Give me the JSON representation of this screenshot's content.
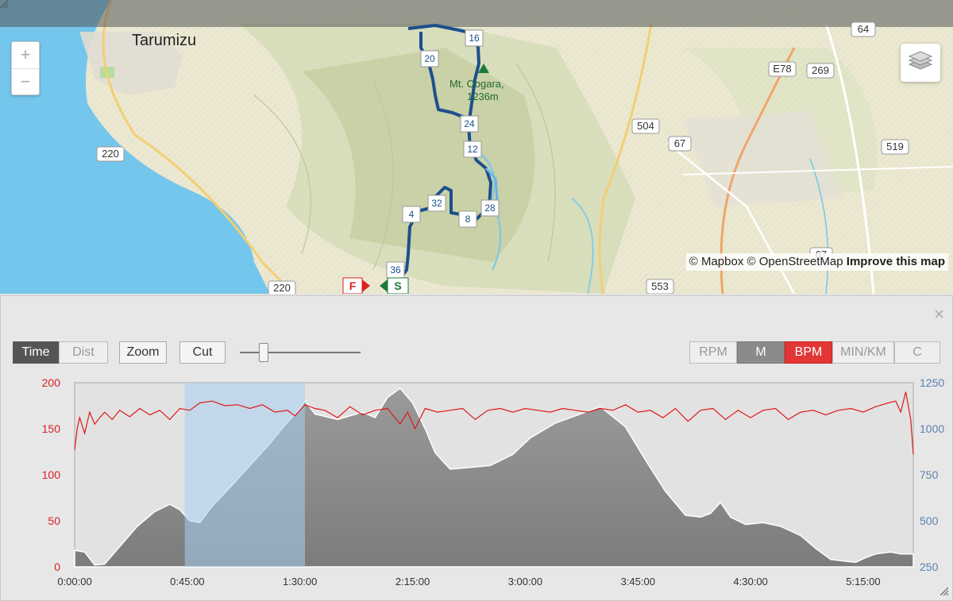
{
  "map": {
    "place_label": "Tarumizu",
    "peak_label_line1": "Mt. Oogara,",
    "peak_label_line2": "1236m",
    "roads": [
      "220",
      "220",
      "64",
      "E78",
      "269",
      "504",
      "67",
      "519",
      "553",
      "67"
    ],
    "checkpoints": [
      "16",
      "20",
      "24",
      "12",
      "32",
      "4",
      "8",
      "28",
      "36"
    ],
    "finish_marker": "F",
    "start_marker": "S",
    "zoom_in": "+",
    "zoom_out": "−",
    "attribution_mapbox": "© Mapbox",
    "attribution_osm": "© OpenStreetMap",
    "attribution_improve": "Improve this map",
    "colors": {
      "sea": "#74c6ec",
      "land": "#ece8d2",
      "route": "#1c4f8c"
    }
  },
  "toolbar": {
    "time": "Time",
    "dist": "Dist",
    "zoom": "Zoom",
    "cut": "Cut",
    "slider_value": 0.2,
    "units": [
      "RPM",
      "M",
      "BPM",
      "MIN/KM",
      "C"
    ],
    "active_axis_unit": "M",
    "active_series_unit": "BPM"
  },
  "panel": {
    "close": "×"
  },
  "chart_data": {
    "type": "area",
    "x_ticks": [
      "0:00:00",
      "0:45:00",
      "1:30:00",
      "2:15:00",
      "3:00:00",
      "3:45:00",
      "4:30:00",
      "5:15:00"
    ],
    "x_range_min": [
      0,
      335
    ],
    "selection_min": [
      44,
      92
    ],
    "series": [
      {
        "name": "M",
        "axis": "right",
        "ylim": [
          250,
          1250
        ],
        "y_ticks": [
          "250",
          "500",
          "750",
          "1000",
          "1250"
        ],
        "x": [
          0,
          4,
          8,
          12,
          18,
          25,
          32,
          38,
          42,
          46,
          50,
          55,
          62,
          70,
          78,
          84,
          90,
          92,
          96,
          105,
          115,
          120,
          125,
          130,
          135,
          140,
          144,
          150,
          158,
          166,
          175,
          182,
          192,
          200,
          210,
          220,
          228,
          236,
          244,
          250,
          254,
          258,
          262,
          268,
          275,
          282,
          290,
          296,
          302,
          308,
          312,
          316,
          320,
          326,
          330,
          335
        ],
        "values": [
          340,
          330,
          260,
          265,
          360,
          470,
          550,
          590,
          560,
          500,
          490,
          580,
          680,
          800,
          920,
          1020,
          1110,
          1150,
          1080,
          1050,
          1090,
          1060,
          1170,
          1220,
          1140,
          1000,
          870,
          780,
          790,
          800,
          860,
          950,
          1030,
          1070,
          1120,
          1010,
          830,
          660,
          530,
          520,
          540,
          600,
          520,
          480,
          490,
          470,
          420,
          350,
          290,
          280,
          275,
          300,
          320,
          330,
          320,
          320
        ]
      },
      {
        "name": "BPM",
        "axis": "left",
        "ylim": [
          0,
          200
        ],
        "y_ticks": [
          "0",
          "50",
          "100",
          "150",
          "200"
        ],
        "x": [
          0,
          1,
          2,
          4,
          6,
          8,
          10,
          12,
          15,
          18,
          22,
          26,
          30,
          34,
          38,
          42,
          46,
          50,
          55,
          60,
          65,
          70,
          75,
          80,
          85,
          88,
          92,
          96,
          100,
          105,
          110,
          115,
          120,
          125,
          130,
          133,
          136,
          140,
          145,
          150,
          155,
          160,
          165,
          170,
          175,
          180,
          185,
          190,
          195,
          200,
          205,
          210,
          215,
          220,
          225,
          230,
          235,
          240,
          245,
          250,
          255,
          260,
          265,
          270,
          275,
          280,
          285,
          290,
          295,
          300,
          305,
          310,
          315,
          320,
          325,
          328,
          330,
          332,
          334,
          335
        ],
        "values": [
          127,
          150,
          162,
          145,
          168,
          155,
          162,
          168,
          160,
          170,
          163,
          172,
          165,
          170,
          160,
          172,
          170,
          178,
          180,
          175,
          176,
          172,
          176,
          168,
          170,
          164,
          176,
          172,
          170,
          162,
          174,
          165,
          170,
          172,
          155,
          168,
          150,
          172,
          168,
          170,
          172,
          160,
          170,
          172,
          168,
          172,
          170,
          168,
          172,
          170,
          168,
          172,
          170,
          176,
          168,
          170,
          162,
          172,
          158,
          170,
          172,
          160,
          170,
          162,
          170,
          172,
          160,
          168,
          170,
          165,
          170,
          172,
          168,
          174,
          178,
          180,
          168,
          190,
          160,
          122
        ]
      }
    ]
  }
}
